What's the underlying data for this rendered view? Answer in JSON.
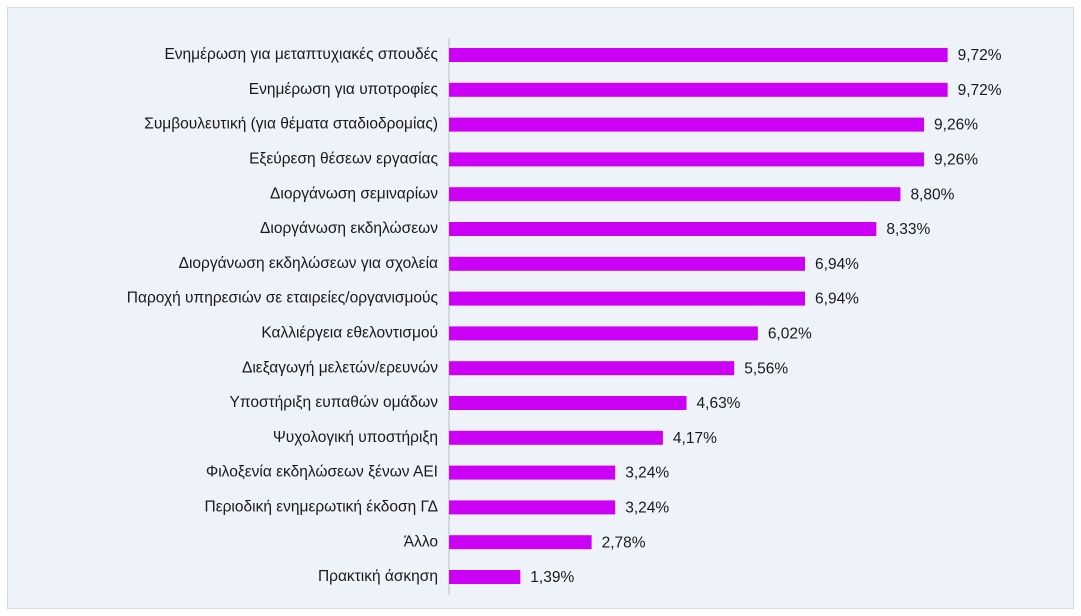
{
  "chart_data": {
    "type": "bar",
    "orientation": "horizontal",
    "color": "#cc00f5",
    "categories": [
      "Ενημέρωση για μεταπτυχιακές σπουδές",
      "Ενημέρωση για υποτροφίες",
      "Συμβουλευτική (για θέματα σταδιοδρομίας)",
      "Εξεύρεση θέσεων εργασίας",
      "Διοργάνωση σεμιναρίων",
      "Διοργάνωση εκδηλώσεων",
      "Διοργάνωση εκδηλώσεων για σχολεία",
      "Παροχή υπηρεσιών σε εταιρείες/οργανισμούς",
      "Καλλιέργεια εθελοντισμού",
      "Διεξαγωγή μελετών/ερευνών",
      "Υποστήριξη ευπαθών ομάδων",
      "Ψυχολογική υποστήριξη",
      "Φιλοξενία εκδηλώσεων ξένων ΑΕΙ",
      "Περιοδική ενημερωτική έκδοση ΓΔ",
      "Άλλο",
      "Πρακτική άσκηση"
    ],
    "values": [
      9.72,
      9.72,
      9.26,
      9.26,
      8.8,
      8.33,
      6.94,
      6.94,
      6.02,
      5.56,
      4.63,
      4.17,
      3.24,
      3.24,
      2.78,
      1.39
    ],
    "value_labels": [
      "9,72%",
      "9,72%",
      "9,26%",
      "9,26%",
      "8,80%",
      "8,33%",
      "6,94%",
      "6,94%",
      "6,02%",
      "5,56%",
      "4,63%",
      "4,17%",
      "3,24%",
      "3,24%",
      "2,78%",
      "1,39%"
    ]
  }
}
